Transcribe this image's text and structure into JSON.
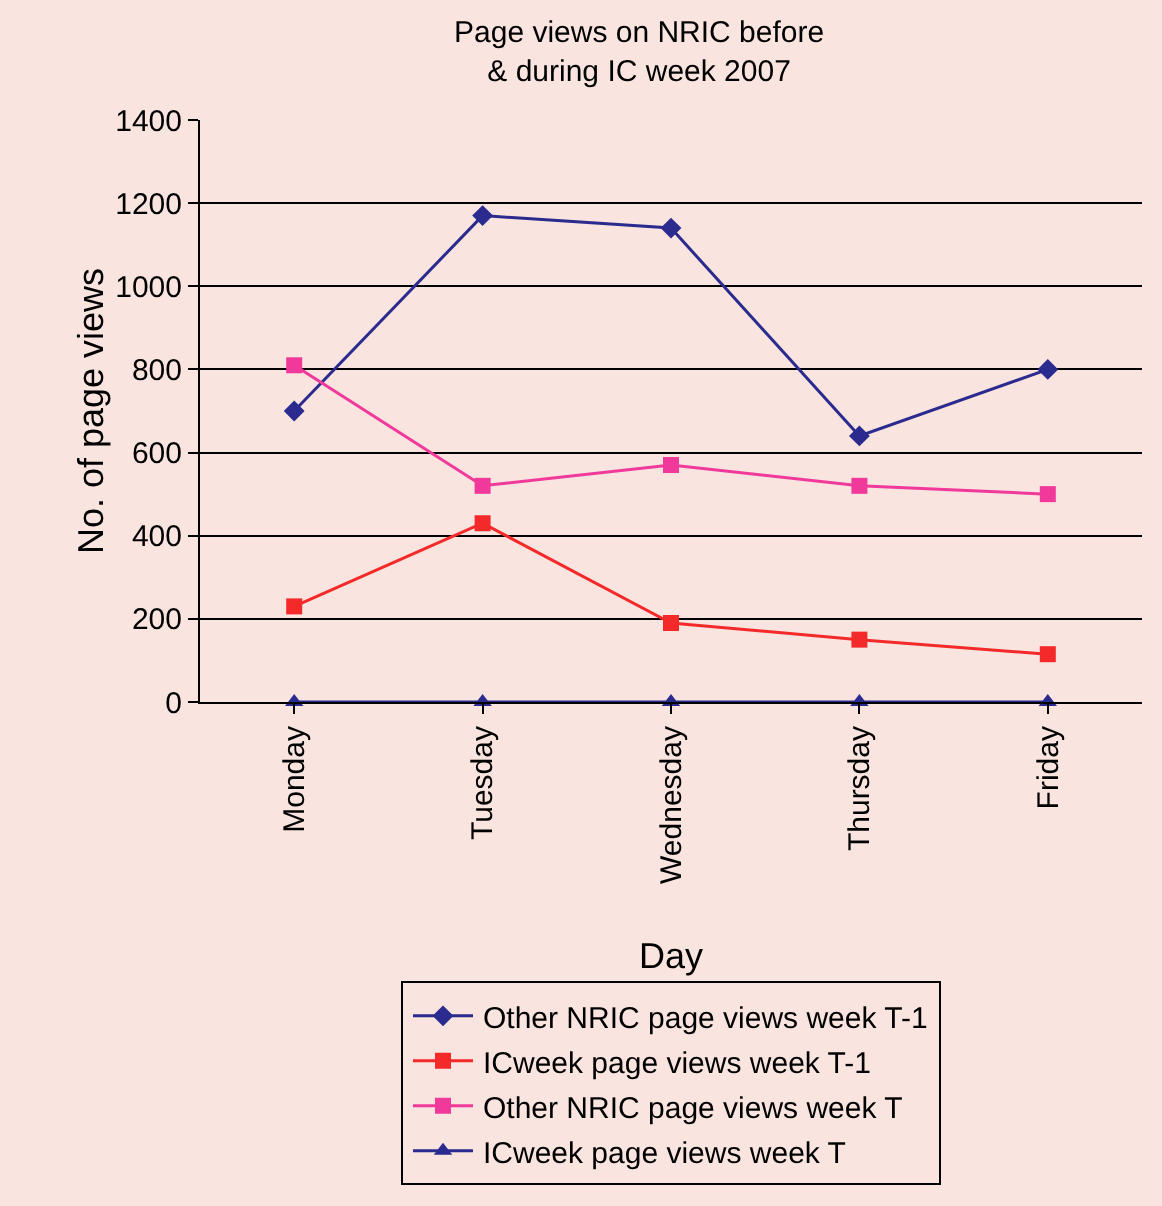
{
  "chart_data": {
    "type": "line",
    "title": "Page views on NRIC before & during IC week 2007",
    "xlabel": "Day",
    "ylabel": "No. of page views",
    "categories": [
      "Monday",
      "Tuesday",
      "Wednesday",
      "Thursday",
      "Friday"
    ],
    "series": [
      {
        "name": "Other NRIC page views week T-1",
        "color": "#2b2b8f",
        "marker": "diamond",
        "values": [
          700,
          1170,
          1140,
          640,
          800
        ]
      },
      {
        "name": "ICweek page views week T-1",
        "color": "#f42a2a",
        "marker": "square",
        "values": [
          230,
          430,
          190,
          150,
          115
        ]
      },
      {
        "name": "Other NRIC page views week T",
        "color": "#f0399a",
        "marker": "square",
        "values": [
          810,
          520,
          570,
          520,
          500
        ]
      },
      {
        "name": "ICweek page views week T",
        "color": "#2b2b8f",
        "marker": "triangle",
        "values": [
          0,
          0,
          0,
          0,
          0
        ]
      }
    ],
    "ylim": [
      0,
      1400
    ],
    "yticks": [
      0,
      200,
      400,
      600,
      800,
      1000,
      1200,
      1400
    ],
    "grid": "y",
    "legend": "bottom"
  }
}
